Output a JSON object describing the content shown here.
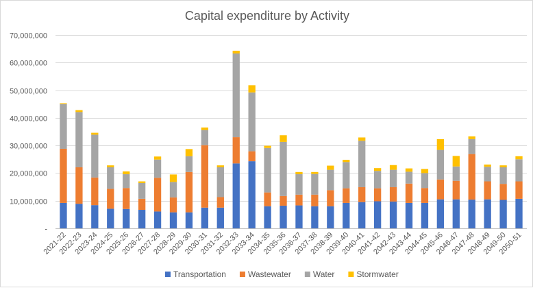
{
  "chart_data": {
    "type": "bar",
    "stacked": true,
    "title": "Capital expenditure by Activity",
    "xlabel": "",
    "ylabel": "",
    "ylim": [
      0,
      70000000
    ],
    "y_ticks": [
      0,
      10000000,
      20000000,
      30000000,
      40000000,
      50000000,
      60000000,
      70000000
    ],
    "y_tick_labels": [
      "-",
      "10,000,000",
      "20,000,000",
      "30,000,000",
      "40,000,000",
      "50,000,000",
      "60,000,000",
      "70,000,000"
    ],
    "grid": true,
    "legend_position": "bottom",
    "categories": [
      "2021-22",
      "2022-23",
      "2023-24",
      "2024-25",
      "2025-26",
      "2026-27",
      "2027-28",
      "2028-29",
      "2029-30",
      "2030-31",
      "2031-32",
      "2032-33",
      "2033-34",
      "2034-35",
      "2035-36",
      "2036-37",
      "2037-38",
      "2038-39",
      "2039-40",
      "2040-41",
      "2041-42",
      "2042-43",
      "2043-44",
      "2044-45",
      "2045-46",
      "2046-47",
      "2047-48",
      "2048-49",
      "2049-50",
      "2050-51"
    ],
    "series": [
      {
        "name": "Transportation",
        "color": "#4472C4",
        "values": [
          9200000,
          8900000,
          8400000,
          7100000,
          7000000,
          6700000,
          6100000,
          5800000,
          5800000,
          7500000,
          7500000,
          23500000,
          24300000,
          8000000,
          8200000,
          8300000,
          8000000,
          8000000,
          9200000,
          9500000,
          9800000,
          9700000,
          9200000,
          9200000,
          10500000,
          10500000,
          10400000,
          10500000,
          10300000,
          10700000
        ]
      },
      {
        "name": "Wastewater",
        "color": "#ED7D31",
        "values": [
          19600000,
          13200000,
          10000000,
          7200000,
          7600000,
          4000000,
          12200000,
          5400000,
          14600000,
          22600000,
          3800000,
          9500000,
          3600000,
          5000000,
          3500000,
          3900000,
          4200000,
          5800000,
          5300000,
          5400000,
          4700000,
          5200000,
          7000000,
          5400000,
          7200000,
          6700000,
          16500000,
          6500000,
          5800000,
          6300000
        ]
      },
      {
        "name": "Water",
        "color": "#A5A5A5",
        "values": [
          16200000,
          20000000,
          15500000,
          7800000,
          5000000,
          5700000,
          6600000,
          5600000,
          5700000,
          5500000,
          10800000,
          30300000,
          21300000,
          16100000,
          19600000,
          7400000,
          7500000,
          7400000,
          9500000,
          16800000,
          6300000,
          6300000,
          4300000,
          5400000,
          10700000,
          5200000,
          5400000,
          5300000,
          6000000,
          8000000
        ]
      },
      {
        "name": "Stormwater",
        "color": "#FFC000",
        "values": [
          300000,
          700000,
          700000,
          700000,
          1000000,
          600000,
          1100000,
          2700000,
          2600000,
          900000,
          700000,
          1000000,
          2600000,
          800000,
          2400000,
          800000,
          700000,
          1500000,
          800000,
          1200000,
          1000000,
          1700000,
          1200000,
          1500000,
          3900000,
          3800000,
          1000000,
          800000,
          700000,
          1100000
        ]
      }
    ]
  }
}
